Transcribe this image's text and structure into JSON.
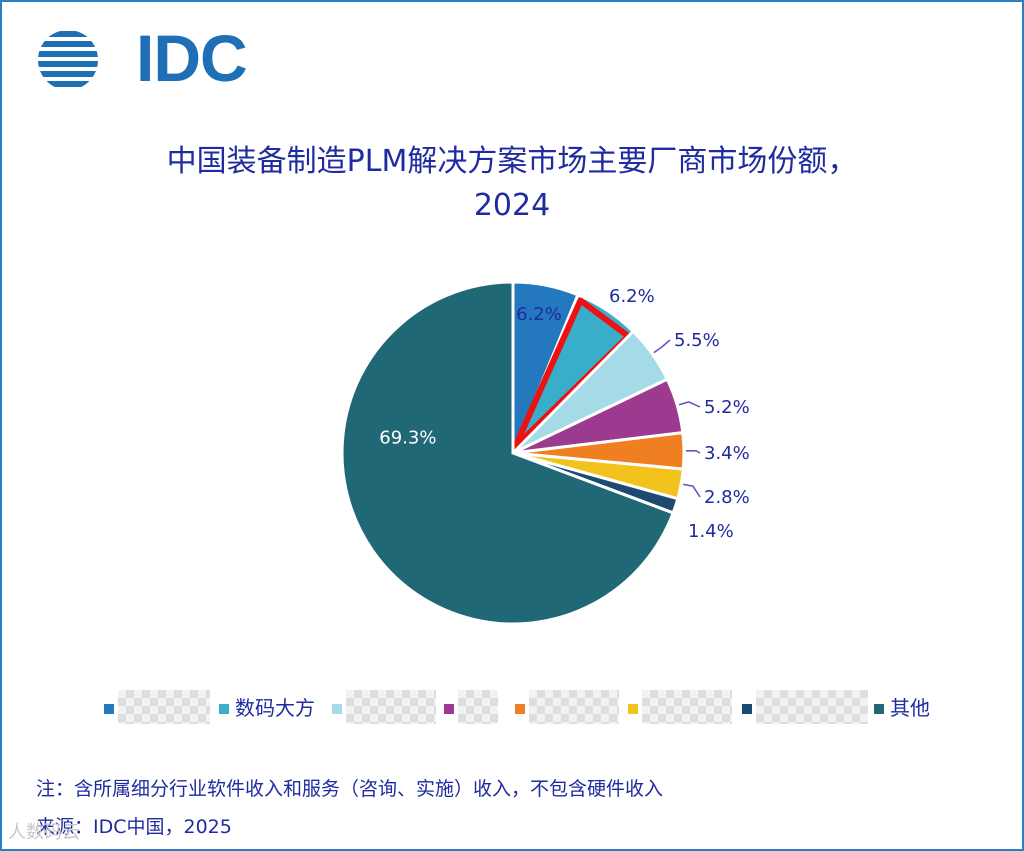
{
  "logo_text": "IDC",
  "title_line1": "中国装备制造PLM解决方案市场主要厂商市场份额，",
  "title_line2": "2024",
  "chart_data": {
    "type": "pie",
    "title": "中国装备制造PLM解决方案市场主要厂商市场份额，2024",
    "slices": [
      {
        "label": "",
        "value": 6.2,
        "display": "6.2%",
        "color": "#2478be"
      },
      {
        "label": "数码大方",
        "value": 6.2,
        "display": "6.2%",
        "color": "#39adc9",
        "highlighted": true
      },
      {
        "label": "",
        "value": 5.5,
        "display": "5.5%",
        "color": "#a5dbe6"
      },
      {
        "label": "",
        "value": 5.2,
        "display": "5.2%",
        "color": "#9b3a8e"
      },
      {
        "label": "",
        "value": 3.4,
        "display": "3.4%",
        "color": "#f07f21"
      },
      {
        "label": "",
        "value": 2.8,
        "display": "2.8%",
        "color": "#f3c31d"
      },
      {
        "label": "",
        "value": 1.4,
        "display": "1.4%",
        "color": "#1c4a70"
      },
      {
        "label": "其他",
        "value": 69.3,
        "display": "69.3%",
        "color": "#206875"
      }
    ],
    "legend_placement": "bottom"
  },
  "footnote": "注：含所属细分行业软件收入和服务（咨询、实施）收入，不包含硬件收入",
  "source": "来源：IDC中国，2025",
  "watermark": "人数码云"
}
